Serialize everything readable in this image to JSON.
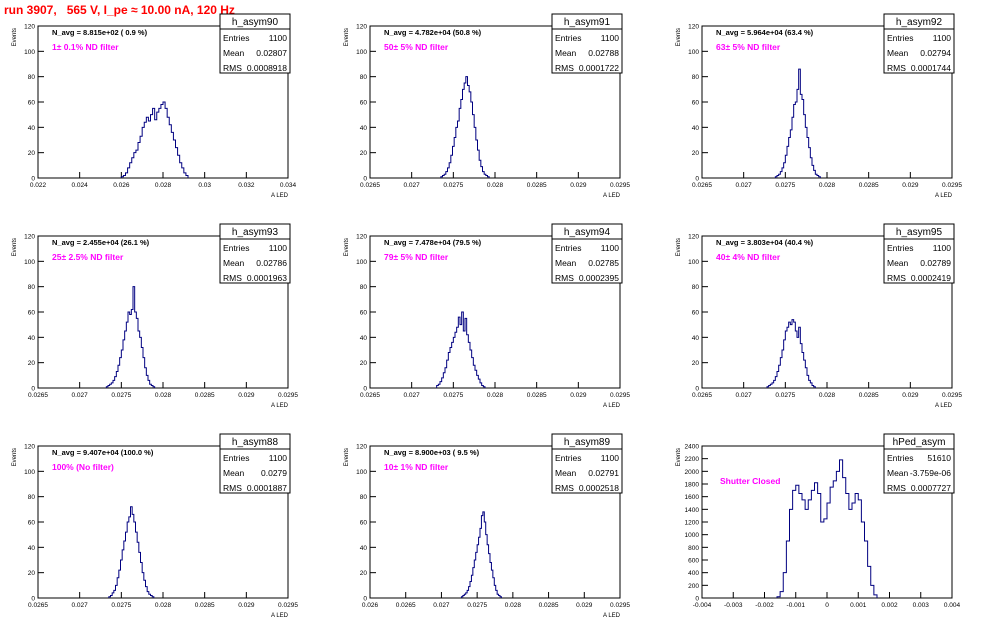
{
  "run_title": "run 3907,   565 V, I_pe ≈ 10.00 nA, 120 Hz",
  "chart_data": [
    {
      "type": "bar",
      "name": "h_asym90",
      "title": "h_asym90",
      "stats": {
        "entries_label": "Entries",
        "entries": "1100",
        "mean_label": "Mean",
        "mean": "0.02807",
        "rms_label": "RMS",
        "rms": "0.0008918"
      },
      "navg": "N_avg = 8.815e+02 ( 0.9 %)",
      "note": "1± 0.1% ND filter",
      "ylabel": "Events",
      "xlabel": "A_LED",
      "xlim": [
        0.022,
        0.034
      ],
      "ylim": [
        0,
        120
      ],
      "xticks": [
        "0.022",
        "0.024",
        "0.026",
        "0.028",
        "0.03",
        "0.032",
        "0.034"
      ],
      "yticks": [
        "0",
        "20",
        "40",
        "60",
        "80",
        "100",
        "120"
      ],
      "bins": {
        "start": 0.026,
        "width": 0.0001,
        "counts": [
          1,
          2,
          4,
          8,
          12,
          16,
          20,
          22,
          28,
          33,
          40,
          44,
          48,
          45,
          50,
          55,
          46,
          52,
          55,
          58,
          60,
          55,
          48,
          42,
          36,
          30,
          24,
          18,
          12,
          8,
          4,
          2
        ]
      }
    },
    {
      "type": "bar",
      "name": "h_asym91",
      "title": "h_asym91",
      "stats": {
        "entries_label": "Entries",
        "entries": "1100",
        "mean_label": "Mean",
        "mean": "0.02788",
        "rms_label": "RMS",
        "rms": "0.0001722"
      },
      "navg": "N_avg = 4.782e+04 (50.8 %)",
      "note": "50± 5% ND filter",
      "ylabel": "Events",
      "xlabel": "A_LED",
      "xlim": [
        0.0265,
        0.0295
      ],
      "ylim": [
        0,
        120
      ],
      "xticks": [
        "0.0265",
        "0.027",
        "0.0275",
        "0.028",
        "0.0285",
        "0.029",
        "0.0295"
      ],
      "yticks": [
        "0",
        "20",
        "40",
        "60",
        "80",
        "100",
        "120"
      ],
      "bins": {
        "start": 0.02735,
        "width": 2e-05,
        "counts": [
          1,
          2,
          3,
          5,
          8,
          12,
          18,
          25,
          32,
          40,
          45,
          55,
          62,
          70,
          75,
          80,
          73,
          68,
          60,
          50,
          40,
          30,
          22,
          14,
          9,
          5,
          3,
          2,
          1
        ]
      }
    },
    {
      "type": "bar",
      "name": "h_asym92",
      "title": "h_asym92",
      "stats": {
        "entries_label": "Entries",
        "entries": "1100",
        "mean_label": "Mean",
        "mean": "0.02794",
        "rms_label": "RMS",
        "rms": "0.0001744"
      },
      "navg": "N_avg = 5.964e+04 (63.4 %)",
      "note": "63± 5% ND filter",
      "ylabel": "Events",
      "xlabel": "A_LED",
      "xlim": [
        0.0265,
        0.0295
      ],
      "ylim": [
        0,
        120
      ],
      "xticks": [
        "0.0265",
        "0.027",
        "0.0275",
        "0.028",
        "0.0285",
        "0.029",
        "0.0295"
      ],
      "yticks": [
        "0",
        "20",
        "40",
        "60",
        "80",
        "100",
        "120"
      ],
      "bins": {
        "start": 0.02738,
        "width": 2e-05,
        "counts": [
          1,
          2,
          3,
          5,
          8,
          12,
          18,
          25,
          32,
          38,
          48,
          58,
          60,
          70,
          86,
          66,
          62,
          50,
          40,
          32,
          24,
          16,
          10,
          6,
          3,
          2,
          1
        ]
      }
    },
    {
      "type": "bar",
      "name": "h_asym93",
      "title": "h_asym93",
      "stats": {
        "entries_label": "Entries",
        "entries": "1100",
        "mean_label": "Mean",
        "mean": "0.02786",
        "rms_label": "RMS",
        "rms": "0.0001963"
      },
      "navg": "N_avg = 2.455e+04 (26.1 %)",
      "note": "25± 2.5% ND filter",
      "ylabel": "Events",
      "xlabel": "A_LED",
      "xlim": [
        0.0265,
        0.0295
      ],
      "ylim": [
        0,
        120
      ],
      "xticks": [
        "0.0265",
        "0.027",
        "0.0275",
        "0.028",
        "0.0285",
        "0.029",
        "0.0295"
      ],
      "yticks": [
        "0",
        "20",
        "40",
        "60",
        "80",
        "100",
        "120"
      ],
      "bins": {
        "start": 0.02732,
        "width": 2e-05,
        "counts": [
          1,
          2,
          3,
          4,
          6,
          9,
          13,
          18,
          24,
          30,
          38,
          45,
          52,
          60,
          58,
          62,
          80,
          60,
          55,
          45,
          40,
          32,
          24,
          16,
          10,
          6,
          3,
          2,
          1
        ]
      }
    },
    {
      "type": "bar",
      "name": "h_asym94",
      "title": "h_asym94",
      "stats": {
        "entries_label": "Entries",
        "entries": "1100",
        "mean_label": "Mean",
        "mean": "0.02785",
        "rms_label": "RMS",
        "rms": "0.0002395"
      },
      "navg": "N_avg = 7.478e+04 (79.5 %)",
      "note": "79± 5% ND filter",
      "ylabel": "Events",
      "xlabel": "A_LED",
      "xlim": [
        0.0265,
        0.0295
      ],
      "ylim": [
        0,
        120
      ],
      "xticks": [
        "0.0265",
        "0.027",
        "0.0275",
        "0.028",
        "0.0285",
        "0.029",
        "0.0295"
      ],
      "yticks": [
        "0",
        "20",
        "40",
        "60",
        "80",
        "100",
        "120"
      ],
      "bins": {
        "start": 0.0273,
        "width": 2e-05,
        "counts": [
          2,
          3,
          5,
          8,
          12,
          16,
          22,
          28,
          32,
          36,
          40,
          44,
          48,
          56,
          50,
          60,
          45,
          55,
          42,
          36,
          30,
          24,
          18,
          14,
          10,
          7,
          4,
          2,
          1
        ]
      }
    },
    {
      "type": "bar",
      "name": "h_asym95",
      "title": "h_asym95",
      "stats": {
        "entries_label": "Entries",
        "entries": "1100",
        "mean_label": "Mean",
        "mean": "0.02789",
        "rms_label": "RMS",
        "rms": "0.0002419"
      },
      "navg": "N_avg = 3.803e+04 (40.4 %)",
      "note": "40± 4% ND filter",
      "ylabel": "Events",
      "xlabel": "A_LED",
      "xlim": [
        0.0265,
        0.0295
      ],
      "ylim": [
        0,
        120
      ],
      "xticks": [
        "0.0265",
        "0.027",
        "0.0275",
        "0.028",
        "0.0285",
        "0.029",
        "0.0295"
      ],
      "yticks": [
        "0",
        "20",
        "40",
        "60",
        "80",
        "100",
        "120"
      ],
      "bins": {
        "start": 0.02728,
        "width": 2e-05,
        "counts": [
          1,
          2,
          3,
          4,
          6,
          9,
          13,
          18,
          24,
          30,
          38,
          45,
          48,
          52,
          50,
          54,
          52,
          45,
          40,
          48,
          35,
          28,
          22,
          16,
          10,
          6,
          4,
          2,
          1
        ]
      }
    },
    {
      "type": "bar",
      "name": "h_asym88",
      "title": "h_asym88",
      "stats": {
        "entries_label": "Entries",
        "entries": "1100",
        "mean_label": "Mean",
        "mean": "0.0279",
        "rms_label": "RMS",
        "rms": "0.0001887"
      },
      "navg": "N_avg = 9.407e+04 (100.0 %)",
      "note": "100% (No filter)",
      "ylabel": "Events",
      "xlabel": "A_LED",
      "xlim": [
        0.0265,
        0.0295
      ],
      "ylim": [
        0,
        120
      ],
      "xticks": [
        "0.0265",
        "0.027",
        "0.0275",
        "0.028",
        "0.0285",
        "0.029",
        "0.0295"
      ],
      "yticks": [
        "0",
        "20",
        "40",
        "60",
        "80",
        "100",
        "120"
      ],
      "bins": {
        "start": 0.02735,
        "width": 2e-05,
        "counts": [
          1,
          2,
          4,
          6,
          10,
          16,
          22,
          30,
          38,
          45,
          52,
          60,
          64,
          72,
          66,
          60,
          52,
          44,
          36,
          28,
          20,
          14,
          9,
          5,
          3,
          2,
          1
        ]
      }
    },
    {
      "type": "bar",
      "name": "h_asym89",
      "title": "h_asym89",
      "stats": {
        "entries_label": "Entries",
        "entries": "1100",
        "mean_label": "Mean",
        "mean": "0.02791",
        "rms_label": "RMS",
        "rms": "0.0002518"
      },
      "navg": "N_avg = 8.900e+03 ( 9.5 %)",
      "note": "10± 1% ND filter",
      "ylabel": "Events",
      "xlabel": "A_LED",
      "xlim": [
        0.026,
        0.0295
      ],
      "ylim": [
        0,
        120
      ],
      "xticks": [
        "0.026",
        "0.0265",
        "0.027",
        "0.0275",
        "0.028",
        "0.0285",
        "0.029",
        "0.0295"
      ],
      "yticks": [
        "0",
        "20",
        "40",
        "60",
        "80",
        "100",
        "120"
      ],
      "bins": {
        "start": 0.02728,
        "width": 2e-05,
        "counts": [
          1,
          2,
          3,
          4,
          6,
          9,
          13,
          18,
          24,
          30,
          36,
          42,
          48,
          55,
          65,
          68,
          60,
          50,
          42,
          35,
          28,
          22,
          16,
          10,
          6,
          3,
          2,
          1
        ]
      }
    },
    {
      "type": "bar",
      "name": "hPed_asym",
      "title": "hPed_asym",
      "stats": {
        "entries_label": "Entries",
        "entries": "51610",
        "mean_label": "Mean",
        "mean": "-3.759e-06",
        "rms_label": "RMS",
        "rms": "0.0007727"
      },
      "navg": "",
      "note": "Shutter Closed",
      "ylabel": "Events",
      "xlabel": "",
      "xlim": [
        -0.004,
        0.004
      ],
      "ylim": [
        0,
        2400
      ],
      "xticks": [
        "-0.004",
        "-0.003",
        "-0.002",
        "-0.001",
        "0",
        "0.001",
        "0.002",
        "0.003",
        "0.004"
      ],
      "yticks": [
        "0",
        "200",
        "400",
        "600",
        "800",
        "1000",
        "1200",
        "1400",
        "1600",
        "1800",
        "2000",
        "2200",
        "2400"
      ],
      "bins": {
        "start": -0.0016,
        "width": 0.0001,
        "counts": [
          20,
          100,
          400,
          900,
          1400,
          1700,
          1780,
          1650,
          1550,
          1400,
          1550,
          1700,
          1820,
          1650,
          1200,
          1250,
          1500,
          1750,
          1850,
          2000,
          2180,
          1900,
          1650,
          1400,
          1500,
          1650,
          1550,
          1200,
          900,
          500,
          200,
          50
        ]
      }
    }
  ]
}
